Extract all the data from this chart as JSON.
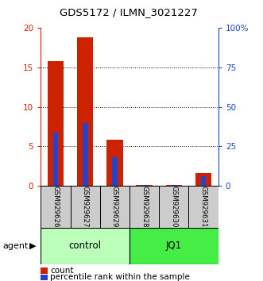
{
  "title": "GDS5172 / ILMN_3021227",
  "categories": [
    "GSM929626",
    "GSM929627",
    "GSM929629",
    "GSM929628",
    "GSM929630",
    "GSM929631"
  ],
  "count_values": [
    15.8,
    18.8,
    5.8,
    0.05,
    0.05,
    1.6
  ],
  "percentile_values": [
    33.5,
    39.5,
    18.0,
    0.25,
    0.25,
    6.0
  ],
  "groups": [
    {
      "label": "control",
      "color": "#bbffbb",
      "span": [
        0,
        3
      ]
    },
    {
      "label": "JQ1",
      "color": "#44ee44",
      "span": [
        3,
        6
      ]
    }
  ],
  "ylim_left": [
    0,
    20
  ],
  "ylim_right": [
    0,
    100
  ],
  "yticks_left": [
    0,
    5,
    10,
    15,
    20
  ],
  "yticks_right": [
    0,
    25,
    50,
    75,
    100
  ],
  "ytick_labels_left": [
    "0",
    "5",
    "10",
    "15",
    "20"
  ],
  "ytick_labels_right": [
    "0",
    "25",
    "50",
    "75",
    "100%"
  ],
  "count_color": "#cc2200",
  "percentile_color": "#2244cc",
  "left_axis_color": "#cc2200",
  "right_axis_color": "#2244cc",
  "agent_label": "agent",
  "legend_count": "count",
  "legend_pct": "percentile rank within the sample",
  "bg_label_color": "#cccccc",
  "grid_yticks": [
    5,
    10,
    15
  ]
}
